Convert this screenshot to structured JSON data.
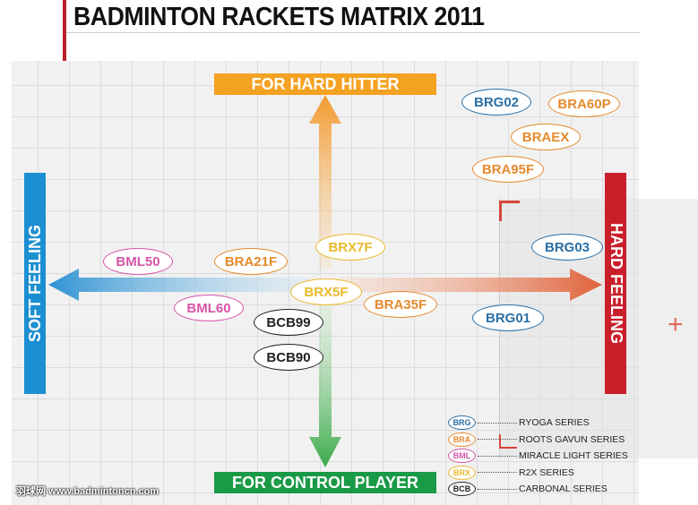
{
  "title": "BADMINTON RACKETS MATRIX 2011",
  "axes": {
    "top": "FOR HARD HITTER",
    "bottom": "FOR CONTROL PLAYER",
    "left": "SOFT FEELING",
    "right": "HARD FEELING"
  },
  "colors": {
    "BRG": "#2a6fa5",
    "BRA": "#e58a2c",
    "BML": "#d655a7",
    "BRX": "#e9b82a",
    "BCB": "#222222",
    "top_axis": "#f4a221",
    "bottom_axis": "#1a9a47",
    "left_axis": "#1b8fd1",
    "right_axis": "#c91f2b"
  },
  "rackets": {
    "brg02": "BRG02",
    "bra60p": "BRA60P",
    "braex": "BRAEX",
    "bra95f": "BRA95F",
    "brg03": "BRG03",
    "bml50": "BML50",
    "bra21f": "BRA21F",
    "brx7f": "BRX7F",
    "brx5f": "BRX5F",
    "bra35f": "BRA35F",
    "bml60": "BML60",
    "bcb99": "BCB99",
    "bcb90": "BCB90",
    "brg01": "BRG01"
  },
  "legend": [
    {
      "code": "BRG",
      "label": "RYOGA SERIES"
    },
    {
      "code": "BRA",
      "label": "ROOTS GAVUN SERIES"
    },
    {
      "code": "BML",
      "label": "MIRACLE LIGHT SERIES"
    },
    {
      "code": "BRX",
      "label": "R2X SERIES"
    },
    {
      "code": "BCB",
      "label": "CARBONAL SERIES"
    }
  ],
  "watermark": {
    "site": "羽球网 www.badmintoncn.com"
  }
}
